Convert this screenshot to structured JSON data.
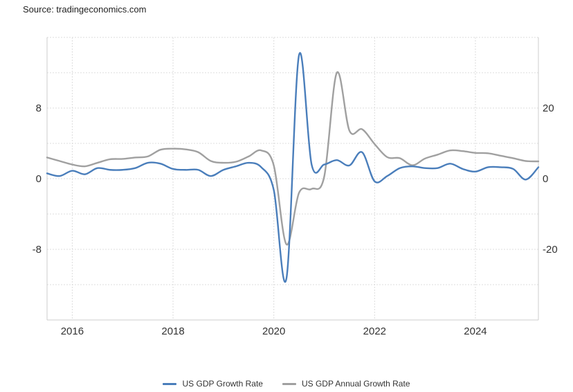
{
  "source": "Source: tradingeconomics.com",
  "chart_data": {
    "type": "line",
    "title": "",
    "grid": true,
    "legend_position": "bottom",
    "x_ticks": [
      "2016",
      "2018",
      "2020",
      "2022",
      "2024"
    ],
    "x_range": [
      2015.5,
      2025.25
    ],
    "left_axis": {
      "ticks": [
        "8",
        "0",
        "-8"
      ],
      "range": [
        -16,
        16
      ]
    },
    "right_axis": {
      "ticks": [
        "20",
        "0",
        "-20"
      ],
      "range": [
        -40,
        40
      ]
    },
    "series": [
      {
        "name": "US GDP Growth Rate",
        "axis": "left",
        "color": "#4a7ebb",
        "x": [
          2015.5,
          2015.75,
          2016.0,
          2016.25,
          2016.5,
          2016.75,
          2017.0,
          2017.25,
          2017.5,
          2017.75,
          2018.0,
          2018.25,
          2018.5,
          2018.75,
          2019.0,
          2019.25,
          2019.5,
          2019.75,
          2020.0,
          2020.25,
          2020.5,
          2020.75,
          2021.0,
          2021.25,
          2021.5,
          2021.75,
          2022.0,
          2022.25,
          2022.5,
          2022.75,
          2023.0,
          2023.25,
          2023.5,
          2023.75,
          2024.0,
          2024.25,
          2024.5,
          2024.75,
          2025.0,
          2025.25
        ],
        "values": [
          0.6,
          0.3,
          0.9,
          0.5,
          1.2,
          1.0,
          1.0,
          1.2,
          1.8,
          1.7,
          1.1,
          1.0,
          1.0,
          0.3,
          1.0,
          1.4,
          1.8,
          1.3,
          -1.3,
          -11.3,
          14.0,
          1.6,
          1.6,
          2.1,
          1.5,
          3.0,
          -0.3,
          0.3,
          1.2,
          1.4,
          1.2,
          1.2,
          1.7,
          1.1,
          0.8,
          1.3,
          1.3,
          1.1,
          -0.1,
          1.3
        ]
      },
      {
        "name": "US GDP Annual Growth Rate",
        "axis": "right",
        "color": "#a0a0a0",
        "x": [
          2015.5,
          2015.75,
          2016.0,
          2016.25,
          2016.5,
          2016.75,
          2017.0,
          2017.25,
          2017.5,
          2017.75,
          2018.0,
          2018.25,
          2018.5,
          2018.75,
          2019.0,
          2019.25,
          2019.5,
          2019.75,
          2020.0,
          2020.25,
          2020.5,
          2020.75,
          2021.0,
          2021.25,
          2021.5,
          2021.75,
          2022.0,
          2022.25,
          2022.5,
          2022.75,
          2023.0,
          2023.25,
          2023.5,
          2023.75,
          2024.0,
          2024.25,
          2024.5,
          2024.75,
          2025.0,
          2025.25
        ],
        "values": [
          6.0,
          5.0,
          4.0,
          3.5,
          4.5,
          5.5,
          5.6,
          6.0,
          6.3,
          8.2,
          8.5,
          8.3,
          7.5,
          5.0,
          4.5,
          4.8,
          6.3,
          8.0,
          3.7,
          -18.6,
          -4.0,
          -2.9,
          0.6,
          30.0,
          13.6,
          14.0,
          9.8,
          6.1,
          5.8,
          3.8,
          5.7,
          6.8,
          8.0,
          7.8,
          7.3,
          7.2,
          6.5,
          5.8,
          5.0,
          4.9
        ]
      }
    ]
  }
}
